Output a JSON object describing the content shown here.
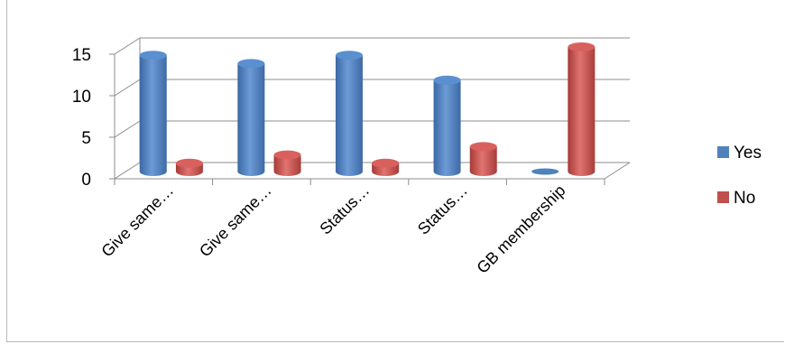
{
  "chart_data": {
    "type": "bar",
    "title": "",
    "xlabel": "",
    "ylabel": "",
    "categories": [
      "Give same…",
      "Give same…",
      "Status…",
      "Status…",
      "GB membership"
    ],
    "series": [
      {
        "name": "Yes",
        "values": [
          14,
          13,
          14,
          11,
          0
        ],
        "color": "#4f81bd"
      },
      {
        "name": "No",
        "values": [
          1,
          2,
          1,
          3,
          15
        ],
        "color": "#c0504d"
      }
    ],
    "ylim": [
      0,
      15
    ],
    "yticks": [
      "0",
      "5",
      "10",
      "15"
    ],
    "grid": true,
    "legend_position": "right",
    "style": "3d-cylinder"
  }
}
